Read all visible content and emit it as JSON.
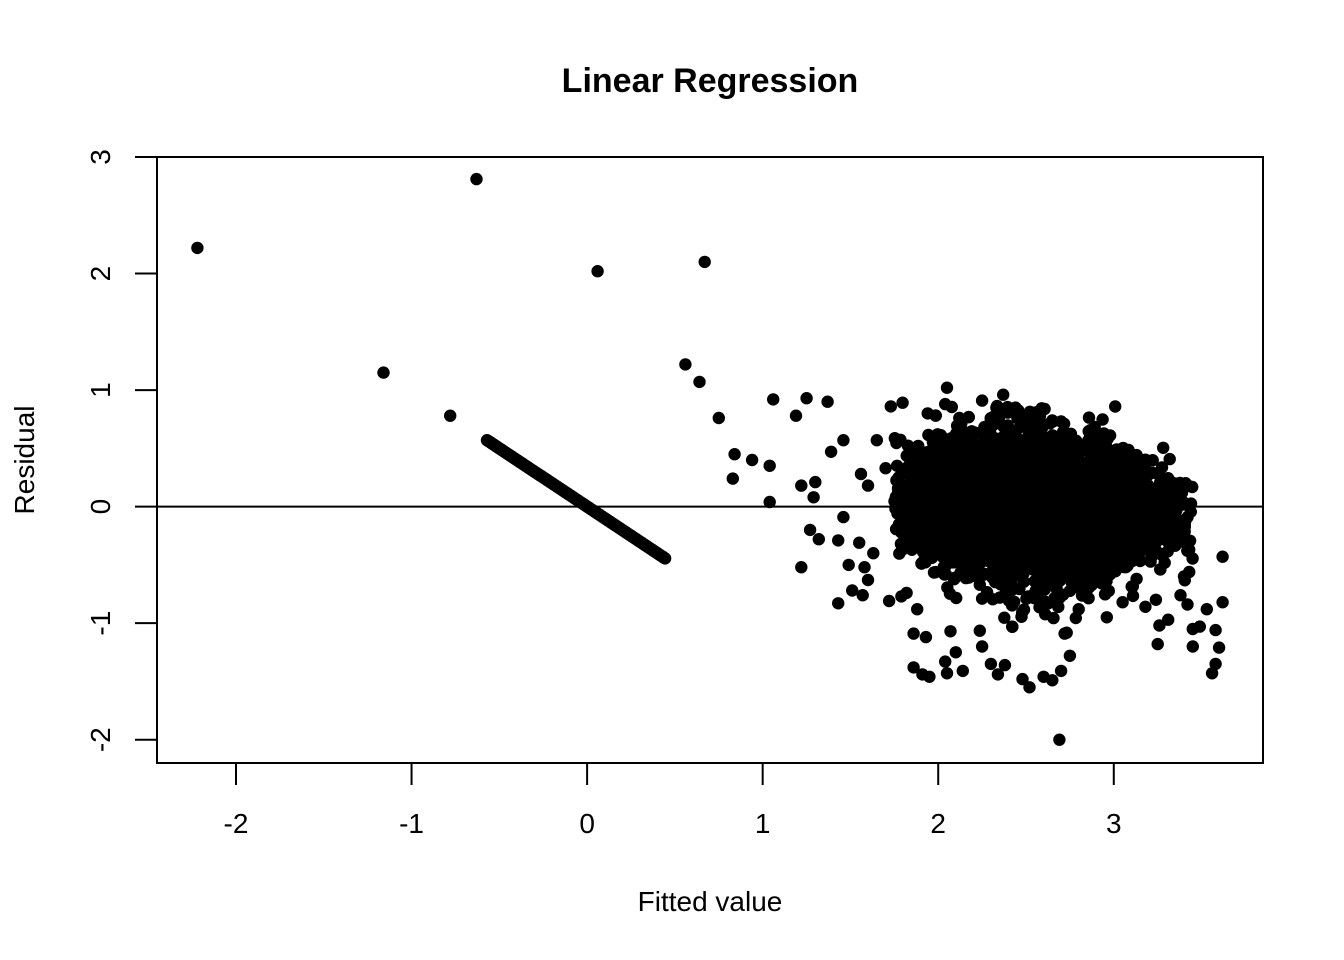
{
  "chart_data": {
    "type": "scatter",
    "title": "Linear Regression",
    "xlabel": "Fitted value",
    "ylabel": "Residual",
    "xlim": [
      -2.45,
      3.85
    ],
    "ylim": [
      -2.2,
      3.0
    ],
    "x_ticks": [
      -2,
      -1,
      0,
      1,
      2,
      3
    ],
    "y_ticks": [
      -2,
      -1,
      0,
      1,
      2,
      3
    ],
    "x_tick_labels": [
      "-2",
      "-1",
      "0",
      "1",
      "2",
      "3"
    ],
    "y_tick_labels": [
      "-2",
      "-1",
      "0",
      "1",
      "2",
      "3"
    ],
    "reference_line": {
      "y": 0
    },
    "grid": false,
    "point_color": "#000000",
    "series": [
      {
        "values_note_free": true,
        "points": [
          [
            -2.22,
            2.22
          ],
          [
            -0.63,
            2.81
          ],
          [
            -1.16,
            1.15
          ],
          [
            -0.78,
            0.78
          ],
          [
            0.06,
            2.02
          ],
          [
            0.67,
            2.1
          ],
          [
            0.56,
            1.22
          ],
          [
            0.64,
            1.07
          ],
          [
            0.75,
            0.76
          ],
          [
            1.06,
            0.92
          ],
          [
            1.25,
            0.93
          ],
          [
            1.37,
            0.9
          ],
          [
            1.19,
            0.78
          ],
          [
            0.84,
            0.45
          ],
          [
            0.94,
            0.4
          ],
          [
            1.04,
            0.35
          ],
          [
            0.83,
            0.24
          ],
          [
            1.04,
            0.04
          ],
          [
            1.22,
            0.18
          ],
          [
            1.3,
            0.21
          ],
          [
            1.29,
            0.08
          ],
          [
            1.27,
            -0.2
          ],
          [
            1.32,
            -0.28
          ],
          [
            1.22,
            -0.52
          ],
          [
            1.39,
            0.47
          ],
          [
            1.46,
            0.57
          ],
          [
            1.46,
            -0.09
          ],
          [
            1.43,
            -0.29
          ],
          [
            1.49,
            -0.5
          ],
          [
            1.43,
            -0.83
          ],
          [
            1.51,
            -0.72
          ],
          [
            1.57,
            -0.76
          ],
          [
            1.55,
            -0.31
          ],
          [
            1.58,
            -0.52
          ],
          [
            1.6,
            -0.63
          ],
          [
            1.63,
            -0.4
          ],
          [
            1.56,
            0.28
          ],
          [
            1.6,
            0.18
          ],
          [
            1.65,
            0.57
          ],
          [
            1.7,
            0.33
          ],
          [
            1.73,
            0.86
          ],
          [
            1.72,
            -0.81
          ],
          [
            1.79,
            -0.77
          ],
          [
            1.82,
            -0.74
          ],
          [
            1.86,
            -1.09
          ],
          [
            1.88,
            -0.88
          ],
          [
            1.93,
            -1.12
          ],
          [
            1.86,
            -1.38
          ],
          [
            1.91,
            -1.44
          ],
          [
            1.95,
            -1.46
          ],
          [
            2.04,
            -1.33
          ],
          [
            2.05,
            -1.43
          ],
          [
            2.1,
            -1.25
          ],
          [
            2.14,
            -1.41
          ],
          [
            2.07,
            -1.07
          ],
          [
            2.25,
            -1.2
          ],
          [
            2.3,
            -1.35
          ],
          [
            2.34,
            -1.44
          ],
          [
            2.38,
            -1.36
          ],
          [
            2.48,
            -1.48
          ],
          [
            2.52,
            -1.55
          ],
          [
            2.6,
            -1.46
          ],
          [
            2.65,
            -1.49
          ],
          [
            2.69,
            -2.0
          ],
          [
            2.7,
            -1.41
          ],
          [
            2.75,
            -1.28
          ],
          [
            2.72,
            -1.09
          ],
          [
            2.8,
            -0.88
          ],
          [
            2.96,
            -0.95
          ],
          [
            3.05,
            -0.82
          ],
          [
            3.13,
            -0.62
          ],
          [
            3.18,
            -0.86
          ],
          [
            3.24,
            -0.8
          ],
          [
            3.25,
            -1.18
          ],
          [
            3.26,
            -1.02
          ],
          [
            3.31,
            -0.97
          ],
          [
            3.38,
            -0.76
          ],
          [
            3.42,
            -0.84
          ],
          [
            3.45,
            -1.05
          ],
          [
            3.49,
            -1.03
          ],
          [
            3.45,
            -1.2
          ],
          [
            3.53,
            -0.88
          ],
          [
            3.56,
            -1.43
          ],
          [
            3.58,
            -1.35
          ],
          [
            3.58,
            -1.06
          ],
          [
            3.6,
            -1.21
          ],
          [
            3.62,
            -0.82
          ],
          [
            3.62,
            -0.43
          ],
          [
            3.4,
            -0.6
          ],
          [
            3.42,
            -0.09
          ],
          [
            2.05,
            1.02
          ],
          [
            2.04,
            0.88
          ],
          [
            2.25,
            0.91
          ],
          [
            2.37,
            0.96
          ],
          [
            2.44,
            0.85
          ],
          [
            1.94,
            0.8
          ],
          [
            2.12,
            0.76
          ],
          [
            2.56,
            0.81
          ],
          [
            2.7,
            0.73
          ],
          [
            2.95,
            0.53
          ],
          [
            3.05,
            0.47
          ],
          [
            3.18,
            0.33
          ],
          [
            3.3,
            0.2
          ],
          [
            3.37,
            0.09
          ]
        ]
      }
    ],
    "linear_band": {
      "x_from": -0.57,
      "x_to": 0.45,
      "slope": -1.0,
      "intercept": 0.0
    },
    "dense_cluster": {
      "x_center": 2.55,
      "y_center": 0.0,
      "x_spread": 0.38,
      "y_spread": 0.33,
      "count": 4500,
      "x_min": 1.75,
      "x_max": 3.45
    }
  }
}
